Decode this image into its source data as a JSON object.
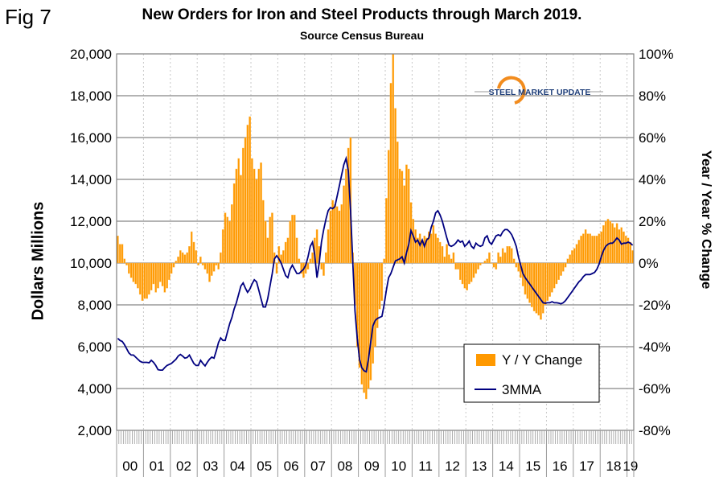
{
  "figure_label": "Fig 7",
  "logo_text": "STEEL MARKET UPDATE",
  "chart_data": {
    "type": "bar+line",
    "title": "New Orders for Iron and Steel Products through March 2019.",
    "subtitle": "Source Census Bureau",
    "ylabel": "Dollars Millions",
    "y2label": "Year / Year % Change",
    "ylim": [
      2000,
      20000
    ],
    "y2lim": [
      -80,
      100
    ],
    "yticks": [
      "2,000",
      "4,000",
      "6,000",
      "8,000",
      "10,000",
      "12,000",
      "14,000",
      "16,000",
      "18,000",
      "20,000"
    ],
    "y2ticks": [
      "-80%",
      "-60%",
      "-40%",
      "-20%",
      "0%",
      "20%",
      "40%",
      "60%",
      "80%",
      "100%"
    ],
    "xticks": [
      "00",
      "01",
      "02",
      "03",
      "04",
      "05",
      "06",
      "07",
      "08",
      "09",
      "10",
      "11",
      "12",
      "13",
      "14",
      "15",
      "16",
      "17",
      "18",
      "19"
    ],
    "x_start": "Jan 2000",
    "x_end": "Mar 2019",
    "grid": true,
    "legend_position": "bottom-right",
    "series": [
      {
        "name": "Y / Y Change",
        "type": "bar",
        "axis": "right",
        "color": "#FF9900",
        "values": [
          13,
          9,
          9,
          2,
          -1,
          -5,
          -7,
          -9,
          -10,
          -12,
          -15,
          -18,
          -17,
          -17,
          -15,
          -13,
          -10,
          -14,
          -12,
          -9,
          -11,
          -14,
          -12,
          -8,
          -5,
          -2,
          1,
          3,
          6,
          5,
          4,
          5,
          8,
          15,
          10,
          6,
          -1,
          3,
          -1,
          -3,
          -5,
          -9,
          -6,
          -4,
          -1,
          -3,
          5,
          16,
          24,
          22,
          20,
          28,
          38,
          45,
          50,
          42,
          55,
          60,
          66,
          70,
          50,
          45,
          40,
          45,
          48,
          30,
          20,
          12,
          22,
          24,
          5,
          -5,
          8,
          4,
          6,
          10,
          12,
          20,
          23,
          23,
          12,
          2,
          -5,
          -7,
          -5,
          -3,
          2,
          5,
          12,
          16,
          8,
          -3,
          -6,
          5,
          16,
          25,
          30,
          28,
          27,
          25,
          28,
          37,
          45,
          55,
          60,
          5,
          -20,
          -40,
          -50,
          -58,
          -62,
          -65,
          -60,
          -56,
          -48,
          -40,
          -31,
          -22,
          -18,
          2,
          31,
          54,
          86,
          100,
          74,
          58,
          45,
          44,
          37,
          47,
          45,
          29,
          21,
          16,
          12,
          14,
          11,
          13,
          12,
          15,
          14,
          18,
          14,
          12,
          10,
          8,
          3,
          9,
          4,
          2,
          5,
          -3,
          -3,
          -8,
          -10,
          -12,
          -13,
          -10,
          -9,
          -7,
          -5,
          -3,
          -1,
          0,
          1,
          2,
          5,
          0,
          -2,
          -3,
          5,
          3,
          7,
          5,
          8,
          8,
          7,
          2,
          -2,
          -4,
          -7,
          -11,
          -15,
          -17,
          -19,
          -21,
          -23,
          -24,
          -25,
          -27,
          -24,
          -20,
          -18,
          -16,
          -14,
          -12,
          -10,
          -8,
          -6,
          -4,
          -2,
          2,
          4,
          6,
          7,
          9,
          11,
          13,
          14,
          16,
          14,
          14,
          13,
          13,
          13,
          14,
          15,
          18,
          20,
          21,
          20,
          19,
          17,
          19,
          16,
          17,
          15,
          13,
          12,
          10,
          6
        ]
      },
      {
        "name": "3MMA",
        "type": "line",
        "axis": "left",
        "color": "#000080",
        "values": [
          6400,
          6300,
          6250,
          6100,
          5900,
          5700,
          5600,
          5600,
          5500,
          5400,
          5300,
          5250,
          5250,
          5250,
          5230,
          5350,
          5250,
          5100,
          4900,
          4880,
          4880,
          5000,
          5100,
          5150,
          5200,
          5300,
          5400,
          5550,
          5630,
          5550,
          5450,
          5480,
          5600,
          5400,
          5200,
          5100,
          5100,
          5350,
          5200,
          5080,
          5250,
          5400,
          5500,
          5450,
          5800,
          6200,
          6420,
          6300,
          6300,
          6700,
          7100,
          7400,
          7800,
          8100,
          8500,
          8900,
          9050,
          8800,
          8600,
          8750,
          9000,
          9200,
          9100,
          8700,
          8300,
          7900,
          7900,
          8300,
          8900,
          9500,
          10200,
          10350,
          10200,
          10000,
          9700,
          9400,
          9300,
          9700,
          9900,
          9700,
          9500,
          9500,
          9600,
          9700,
          9900,
          10300,
          10800,
          11000,
          10400,
          9300,
          10000,
          11000,
          11600,
          12100,
          12500,
          12650,
          12600,
          12700,
          13200,
          13700,
          14200,
          14700,
          15000,
          14400,
          12500,
          10000,
          7700,
          6400,
          5400,
          5000,
          4850,
          4800,
          5400,
          6200,
          7000,
          7250,
          7350,
          7400,
          7450,
          8000,
          8700,
          9300,
          9500,
          9800,
          10100,
          10150,
          10200,
          10300,
          10000,
          10500,
          10900,
          11550,
          11300,
          11000,
          11100,
          10850,
          11100,
          10800,
          11100,
          11200,
          11700,
          12000,
          12400,
          12500,
          12300,
          12000,
          11600,
          11200,
          10850,
          10800,
          10850,
          10950,
          11100,
          11000,
          11050,
          10800,
          10900,
          11050,
          10800,
          10700,
          10950,
          10850,
          10800,
          10850,
          11200,
          11300,
          11000,
          10900,
          11100,
          11300,
          11350,
          11300,
          11500,
          11600,
          11600,
          11500,
          11350,
          11100,
          10800,
          10300,
          9900,
          9500,
          9300,
          9150,
          9000,
          8850,
          8700,
          8550,
          8400,
          8250,
          8100,
          8080,
          8100,
          8100,
          8150,
          8100,
          8100,
          8080,
          8050,
          8100,
          8200,
          8350,
          8500,
          8650,
          8800,
          8950,
          9100,
          9200,
          9350,
          9450,
          9450,
          9450,
          9500,
          9550,
          9700,
          9950,
          10300,
          10600,
          10800,
          10900,
          10950,
          10950,
          11050,
          11200,
          11100,
          10900,
          10950,
          10950,
          11000,
          10950,
          10850
        ]
      }
    ]
  }
}
